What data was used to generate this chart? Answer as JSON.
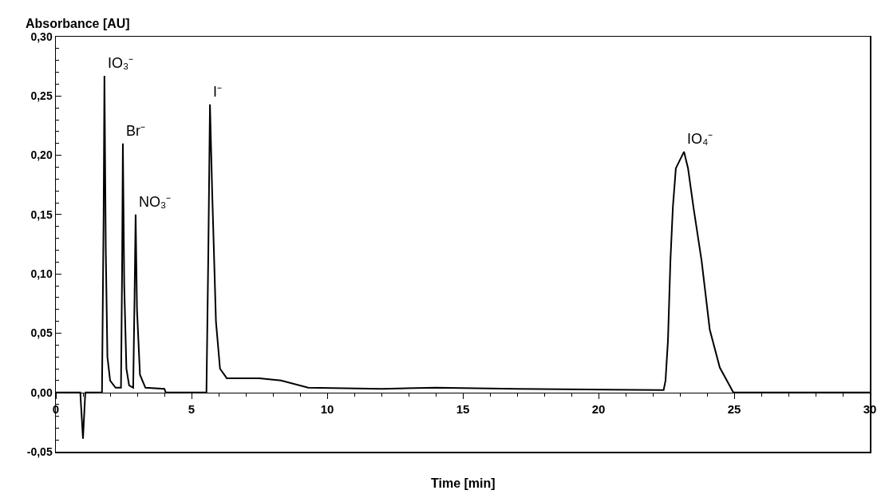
{
  "chart_data": {
    "type": "line",
    "ylabel": "Absorbance [AU]",
    "xlabel": "Time [min]",
    "x": [
      0,
      0.9,
      1.0,
      1.08,
      1.1,
      1.7,
      1.76,
      1.79,
      1.84,
      1.9,
      2.0,
      2.2,
      2.4,
      2.44,
      2.47,
      2.52,
      2.6,
      2.7,
      2.85,
      2.9,
      2.94,
      2.99,
      3.1,
      3.3,
      4.0,
      4.05,
      5.55,
      5.62,
      5.68,
      5.76,
      5.9,
      6.05,
      6.3,
      7.5,
      8.3,
      9.3,
      12,
      14,
      17,
      22.4,
      22.47,
      22.56,
      22.65,
      22.74,
      22.85,
      23.15,
      23.3,
      23.5,
      23.8,
      24.1,
      24.47,
      24.97,
      30
    ],
    "series": [
      {
        "color": "#000000",
        "values": [
          0,
          0,
          -0.039,
          -0.002,
          0,
          0,
          0.15,
          0.267,
          0.12,
          0.03,
          0.01,
          0.004,
          0.004,
          0.1,
          0.21,
          0.09,
          0.02,
          0.006,
          0.004,
          0.08,
          0.15,
          0.07,
          0.015,
          0.004,
          0.003,
          0,
          0,
          0.12,
          0.243,
          0.17,
          0.06,
          0.02,
          0.012,
          0.012,
          0.01,
          0.004,
          0.003,
          0.004,
          0.003,
          0.002,
          0.01,
          0.044,
          0.111,
          0.156,
          0.189,
          0.203,
          0.189,
          0.156,
          0.111,
          0.053,
          0.021,
          0,
          0
        ]
      }
    ],
    "xlim": [
      0,
      30
    ],
    "xticks": [
      0,
      5,
      10,
      15,
      20,
      25,
      30
    ],
    "ylim": [
      -0.05,
      0.3
    ],
    "yticks": [
      {
        "value": -0.05,
        "label": "-0,05"
      },
      {
        "value": 0,
        "label": "0,00"
      },
      {
        "value": 0.05,
        "label": "0,05"
      },
      {
        "value": 0.1,
        "label": "0,10"
      },
      {
        "value": 0.15,
        "label": "0,15"
      },
      {
        "value": 0.2,
        "label": "0,20"
      },
      {
        "value": 0.25,
        "label": "0,25"
      },
      {
        "value": 0.3,
        "label": "0,30"
      }
    ],
    "annotations": [
      {
        "text": "IO₃⁻",
        "x": 1.79,
        "y": 0.267
      },
      {
        "text": "Br⁻",
        "x": 2.47,
        "y": 0.21
      },
      {
        "text": "NO₃⁻",
        "x": 2.94,
        "y": 0.15
      },
      {
        "text": "I⁻",
        "x": 5.68,
        "y": 0.243
      },
      {
        "text": "IO₄⁻",
        "x": 23.15,
        "y": 0.203
      }
    ],
    "grid": false,
    "marker": "none",
    "line_style": "solid"
  }
}
